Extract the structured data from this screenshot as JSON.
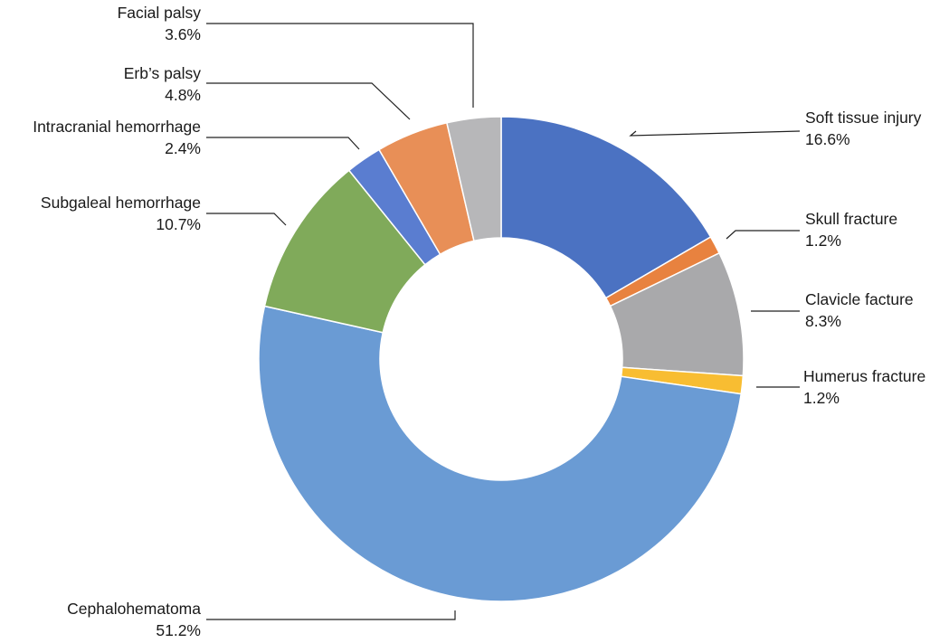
{
  "chart_data": {
    "type": "pie",
    "variant": "donut",
    "title": "",
    "legend": "none",
    "slices": [
      {
        "label": "Soft tissue injury",
        "value": 16.6,
        "display": "16.6%",
        "color": "#4b72c2"
      },
      {
        "label": "Skull  fracture",
        "value": 1.2,
        "display": "1.2%",
        "color": "#e8823f"
      },
      {
        "label": "Clavicle facture",
        "value": 8.3,
        "display": "8.3%",
        "color": "#a9a9ab"
      },
      {
        "label": "Humerus fracture",
        "value": 1.2,
        "display": "1.2%",
        "color": "#f8bd32"
      },
      {
        "label": "Cephalohematoma",
        "value": 51.2,
        "display": "51.2%",
        "color": "#6a9bd4"
      },
      {
        "label": "Subgaleal hemorrhage",
        "value": 10.7,
        "display": "10.7%",
        "color": "#80aa5a"
      },
      {
        "label": "Intracranial hemorrhage",
        "value": 2.4,
        "display": "2.4%",
        "color": "#5a7dd0"
      },
      {
        "label": "Erb’s palsy",
        "value": 4.8,
        "display": "4.8%",
        "color": "#e88f57"
      },
      {
        "label": "Facial palsy",
        "value": 3.6,
        "display": "3.6%",
        "color": "#b7b7b9"
      }
    ]
  }
}
